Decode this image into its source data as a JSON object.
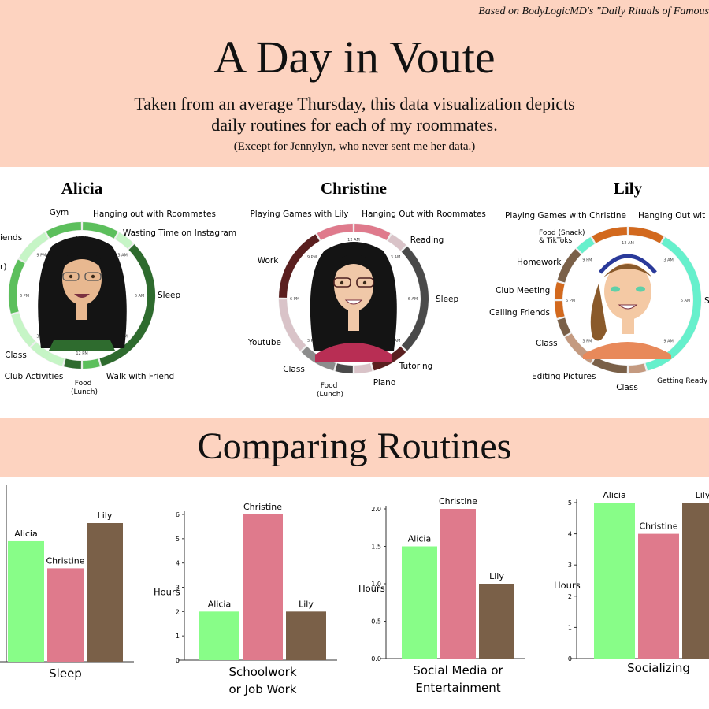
{
  "header": {
    "credit": "Based on BodyLogicMD's \"Daily Rituals of Famous",
    "title": "A Day in Voute",
    "subtitle_line1": "Taken from an average Thursday, this data visualization depicts",
    "subtitle_line2": "daily routines for each of my roommates.",
    "note": "(Except for Jennylyn, who never sent me her data.)"
  },
  "clock_ticks": [
    "12 AM",
    "3 AM",
    "6 AM",
    "9 AM",
    "12 PM",
    "3 PM",
    "6 PM",
    "9 PM"
  ],
  "roommates": [
    {
      "name": "Alicia",
      "activities": [
        {
          "label": "Gym",
          "color": "#5cbf5c"
        },
        {
          "label": "Hanging out with Roommates",
          "color": "#5cbf5c"
        },
        {
          "label": "Wasting Time on Instagram",
          "color": "#c6f5c6"
        },
        {
          "label": "Sleep",
          "color": "#2e6b2e"
        },
        {
          "label": "Walk with Friend",
          "color": "#5cbf5c"
        },
        {
          "label": "Food (Lunch)",
          "color": "#2e6b2e"
        },
        {
          "label": "Club Activities",
          "color": "#c6f5c6"
        },
        {
          "label": "Class",
          "color": "#c6f5c6"
        },
        {
          "label": "r)",
          "color": "#5cbf5c"
        },
        {
          "label": "iends",
          "color": "#5cbf5c"
        }
      ],
      "ring_segments": [
        {
          "start": 0,
          "end": 2,
          "color": "#5cbf5c"
        },
        {
          "start": 2,
          "end": 3,
          "color": "#c6f5c6"
        },
        {
          "start": 3,
          "end": 11,
          "color": "#2e6b2e"
        },
        {
          "start": 11,
          "end": 12,
          "color": "#5cbf5c"
        },
        {
          "start": 12,
          "end": 13,
          "color": "#2e6b2e"
        },
        {
          "start": 13,
          "end": 15,
          "color": "#c6f5c6"
        },
        {
          "start": 15,
          "end": 17,
          "color": "#c6f5c6"
        },
        {
          "start": 17,
          "end": 20,
          "color": "#5cbf5c"
        },
        {
          "start": 20,
          "end": 22,
          "color": "#c6f5c6"
        },
        {
          "start": 22,
          "end": 24,
          "color": "#5cbf5c"
        }
      ]
    },
    {
      "name": "Christine",
      "activities": [
        {
          "label": "Playing Games with Lily",
          "color": "#df7a8c"
        },
        {
          "label": "Hanging Out with Roommates",
          "color": "#df7a8c"
        },
        {
          "label": "Reading",
          "color": "#d9c3c8"
        },
        {
          "label": "Sleep",
          "color": "#4a4a4a"
        },
        {
          "label": "Tutoring",
          "color": "#5a1f1f"
        },
        {
          "label": "Piano",
          "color": "#d9c3c8"
        },
        {
          "label": "Food (Lunch)",
          "color": "#4a4a4a"
        },
        {
          "label": "Class",
          "color": "#8c8c8c"
        },
        {
          "label": "Youtube",
          "color": "#d9c3c8"
        },
        {
          "label": "Work",
          "color": "#5a1f1f"
        }
      ],
      "ring_segments": [
        {
          "start": 0,
          "end": 2,
          "color": "#df7a8c"
        },
        {
          "start": 2,
          "end": 3,
          "color": "#d9c3c8"
        },
        {
          "start": 3,
          "end": 9,
          "color": "#4a4a4a"
        },
        {
          "start": 9,
          "end": 11,
          "color": "#5a1f1f"
        },
        {
          "start": 11,
          "end": 12,
          "color": "#d9c3c8"
        },
        {
          "start": 12,
          "end": 13,
          "color": "#4a4a4a"
        },
        {
          "start": 13,
          "end": 15,
          "color": "#8c8c8c"
        },
        {
          "start": 15,
          "end": 18,
          "color": "#d9c3c8"
        },
        {
          "start": 18,
          "end": 22,
          "color": "#5a1f1f"
        },
        {
          "start": 22,
          "end": 24,
          "color": "#df7a8c"
        }
      ]
    },
    {
      "name": "Lily",
      "activities": [
        {
          "label": "Playing Games with Christine",
          "color": "#d2691e"
        },
        {
          "label": "Hanging Out wit",
          "color": "#d2691e"
        },
        {
          "label": "Food (Snack) & TikToks",
          "color": "#66f0cc"
        },
        {
          "label": "Homework",
          "color": "#7a6048"
        },
        {
          "label": "Club Meeting",
          "color": "#d2691e"
        },
        {
          "label": "Calling Friends",
          "color": "#d2691e"
        },
        {
          "label": "Class",
          "color": "#7a6048"
        },
        {
          "label": "Editing Pictures",
          "color": "#c49a80"
        },
        {
          "label": "Class",
          "color": "#7a6048"
        },
        {
          "label": "Getting Ready for",
          "color": "#c49a80"
        },
        {
          "label": "S",
          "color": "#66f0cc"
        }
      ],
      "ring_segments": [
        {
          "start": 0,
          "end": 2,
          "color": "#d2691e"
        },
        {
          "start": 2,
          "end": 11,
          "color": "#66f0cc"
        },
        {
          "start": 11,
          "end": 12,
          "color": "#c49a80"
        },
        {
          "start": 12,
          "end": 14,
          "color": "#7a6048"
        },
        {
          "start": 14,
          "end": 16,
          "color": "#c49a80"
        },
        {
          "start": 16,
          "end": 17,
          "color": "#7a6048"
        },
        {
          "start": 17,
          "end": 18,
          "color": "#d2691e"
        },
        {
          "start": 18,
          "end": 19,
          "color": "#d2691e"
        },
        {
          "start": 19,
          "end": 21,
          "color": "#7a6048"
        },
        {
          "start": 21,
          "end": 22,
          "color": "#66f0cc"
        },
        {
          "start": 22,
          "end": 24,
          "color": "#d2691e"
        }
      ]
    }
  ],
  "section_title": "Comparing Routines",
  "colors": {
    "band": "#fdd3c0",
    "alicia": "#88fd88",
    "christine": "#df7a8c",
    "lily": "#7a6048"
  },
  "chart_data": [
    {
      "type": "bar",
      "title": "Sleep",
      "ylabel": "",
      "categories": [
        "Alicia",
        "Christine",
        "Lily"
      ],
      "values": [
        8,
        6.2,
        9.2
      ],
      "ylim": [
        0,
        11.5
      ],
      "yticks": [],
      "colors": [
        "#88fd88",
        "#df7a8c",
        "#7a6048"
      ]
    },
    {
      "type": "bar",
      "title": "Schoolwork or Job Work",
      "ylabel": "Hours",
      "categories": [
        "Alicia",
        "Christine",
        "Lily"
      ],
      "values": [
        2,
        6,
        2
      ],
      "ylim": [
        0,
        6
      ],
      "yticks": [
        0,
        1,
        2,
        3,
        4,
        5,
        6
      ],
      "colors": [
        "#88fd88",
        "#df7a8c",
        "#7a6048"
      ]
    },
    {
      "type": "bar",
      "title": "Social Media or Entertainment",
      "ylabel": "Hours",
      "categories": [
        "Alicia",
        "Christine",
        "Lily"
      ],
      "values": [
        1.5,
        2.0,
        1.0
      ],
      "ylim": [
        0,
        2.0
      ],
      "yticks": [
        "0.0",
        "0.5",
        "1.0",
        "1.5",
        "2.0"
      ],
      "colors": [
        "#88fd88",
        "#df7a8c",
        "#7a6048"
      ]
    },
    {
      "type": "bar",
      "title": "Socializing",
      "ylabel": "Hours",
      "categories": [
        "Alicia",
        "Christine",
        "Lily"
      ],
      "values": [
        5,
        4,
        5
      ],
      "ylim": [
        0,
        5
      ],
      "yticks": [
        0,
        1,
        2,
        3,
        4,
        5
      ],
      "colors": [
        "#88fd88",
        "#df7a8c",
        "#7a6048"
      ]
    }
  ]
}
